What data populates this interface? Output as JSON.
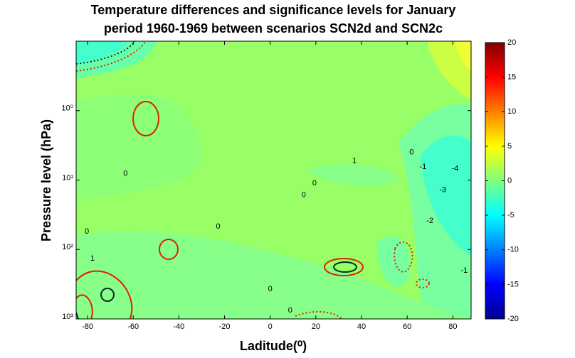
{
  "chart_data": {
    "type": "contour",
    "title": [
      "Temperature differences and significance levels for January",
      "period 1960-1969 between scenarios SCN2d and SCN2c"
    ],
    "xlabel": "Laditude(⁰)",
    "ylabel": "Pressure level (hPa)",
    "xlim": [
      -85,
      88
    ],
    "xticks": [
      -80,
      -60,
      -40,
      -20,
      0,
      20,
      40,
      60,
      80
    ],
    "ylim": [
      1000,
      0.1
    ],
    "yscale": "log",
    "yticks": [
      {
        "value": 1,
        "label": "10⁰"
      },
      {
        "value": 10,
        "label": "10¹"
      },
      {
        "value": 100,
        "label": "10²"
      },
      {
        "value": 1000,
        "label": "10³"
      }
    ],
    "colormap": "jet",
    "clim": [
      -20,
      20
    ],
    "cticks": [
      20,
      15,
      10,
      5,
      0,
      -5,
      -10,
      -15,
      -20
    ],
    "annotations": [
      {
        "text": "0",
        "x": -63.4,
        "y": 8.1
      },
      {
        "text": "1",
        "x": 36.9,
        "y": 5.3
      },
      {
        "text": "0",
        "x": 61.9,
        "y": 4.0
      },
      {
        "text": "-1",
        "x": 66.9,
        "y": 6.5
      },
      {
        "text": "-4",
        "x": 81,
        "y": 6.9
      },
      {
        "text": "-3",
        "x": 75.6,
        "y": 13.9
      },
      {
        "text": "0",
        "x": 19.4,
        "y": 11.2
      },
      {
        "text": "0",
        "x": 14.7,
        "y": 16.4
      },
      {
        "text": "0",
        "x": -22.8,
        "y": 47
      },
      {
        "text": "-2",
        "x": 70,
        "y": 39
      },
      {
        "text": "0",
        "x": -80.3,
        "y": 55
      },
      {
        "text": "1",
        "x": -77.8,
        "y": 135
      },
      {
        "text": "0",
        "x": 0,
        "y": 372
      },
      {
        "text": "-1",
        "x": 85,
        "y": 203
      },
      {
        "text": "0",
        "x": 8.75,
        "y": 754
      }
    ]
  }
}
